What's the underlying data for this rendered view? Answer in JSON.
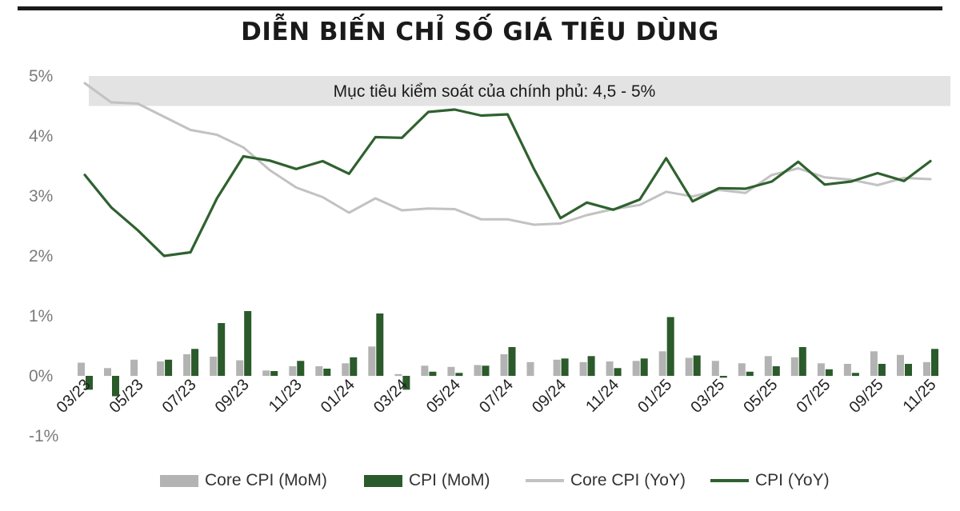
{
  "colors": {
    "core_bar": "#b3b3b3",
    "cpi_bar": "#2b5a2b",
    "core_line": "#c2c2c2",
    "cpi_line": "#2f612f",
    "target_band": "#e3e3e3"
  },
  "chart_data": {
    "type": "combo-line-bar",
    "title": "DIỄN BIẾN CHỈ SỐ GIÁ TIÊU DÙNG",
    "annotation": "Mục tiêu kiểm soát của chính phủ: 4,5 - 5%",
    "target_band": [
      4.5,
      5.0
    ],
    "y_tick_labels": [
      "5%",
      "4%",
      "3%",
      "2%",
      "1%",
      "0%",
      "-1%"
    ],
    "x_tick_labels": [
      "03/23",
      "05/23",
      "07/23",
      "09/23",
      "11/23",
      "01/24",
      "03/24",
      "05/24",
      "07/24",
      "09/24",
      "11/24",
      "01/25",
      "03/25",
      "05/25",
      "07/25",
      "09/25",
      "11/25"
    ],
    "months": [
      "03/23",
      "04/23",
      "05/23",
      "06/23",
      "07/23",
      "08/23",
      "09/23",
      "10/23",
      "11/23",
      "12/23",
      "01/24",
      "02/24",
      "03/24",
      "04/24",
      "05/24",
      "06/24",
      "07/24",
      "08/24",
      "09/24",
      "10/24",
      "11/24",
      "12/24",
      "01/25",
      "02/25",
      "03/25",
      "04/25",
      "05/25",
      "06/25",
      "07/25",
      "08/25",
      "09/25",
      "10/25",
      "11/25"
    ],
    "legend": [
      "Core CPI (MoM)",
      "CPI (MoM)",
      "Core CPI (YoY)",
      "CPI (YoY)"
    ],
    "series": [
      {
        "name": "Core CPI (MoM)",
        "kind": "bar",
        "values": [
          0.22,
          0.13,
          0.27,
          0.24,
          0.36,
          0.32,
          0.26,
          0.09,
          0.16,
          0.16,
          0.21,
          0.49,
          0.03,
          0.17,
          0.15,
          0.18,
          0.36,
          0.23,
          0.27,
          0.23,
          0.24,
          0.25,
          0.41,
          0.3,
          0.25,
          0.21,
          0.33,
          0.31,
          0.21,
          0.2,
          0.41,
          0.35,
          0.23
        ]
      },
      {
        "name": "CPI (MoM)",
        "kind": "bar",
        "values": [
          -0.23,
          -0.34,
          0.0,
          0.27,
          0.45,
          0.88,
          1.08,
          0.08,
          0.25,
          0.12,
          0.31,
          1.04,
          -0.23,
          0.07,
          0.05,
          0.17,
          0.48,
          0.0,
          0.29,
          0.33,
          0.13,
          0.29,
          0.98,
          0.34,
          -0.03,
          0.07,
          0.16,
          0.48,
          0.11,
          0.05,
          0.2,
          0.2,
          0.45
        ]
      },
      {
        "name": "Core CPI (YoY)",
        "kind": "line",
        "values": [
          4.88,
          4.56,
          4.54,
          4.32,
          4.1,
          4.02,
          3.81,
          3.43,
          3.14,
          2.98,
          2.72,
          2.96,
          2.76,
          2.79,
          2.78,
          2.61,
          2.61,
          2.52,
          2.54,
          2.68,
          2.78,
          2.85,
          3.07,
          2.99,
          3.1,
          3.05,
          3.35,
          3.46,
          3.31,
          3.27,
          3.18,
          3.3,
          3.28
        ]
      },
      {
        "name": "CPI (YoY)",
        "kind": "line",
        "values": [
          3.35,
          2.81,
          2.43,
          2.0,
          2.06,
          2.96,
          3.66,
          3.59,
          3.45,
          3.58,
          3.37,
          3.98,
          3.97,
          4.4,
          4.44,
          4.34,
          4.36,
          3.45,
          2.63,
          2.89,
          2.77,
          2.94,
          3.63,
          2.91,
          3.13,
          3.12,
          3.24,
          3.57,
          3.19,
          3.24,
          3.38,
          3.25,
          3.58
        ]
      }
    ]
  }
}
